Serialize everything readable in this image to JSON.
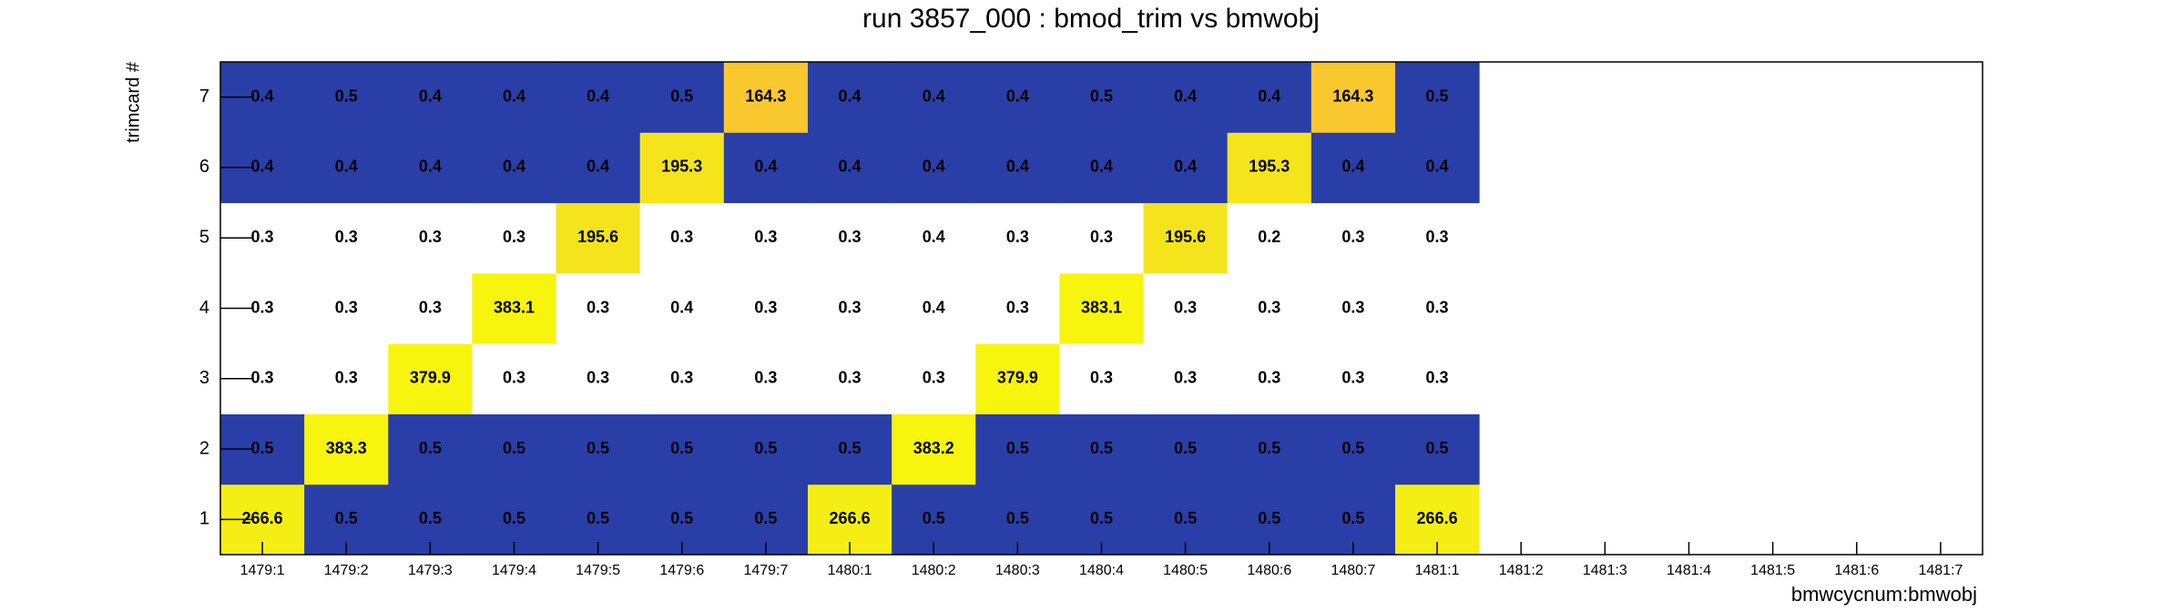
{
  "chart_data": {
    "type": "heatmap",
    "title": "run 3857_000 : bmod_trim vs bmwobj",
    "x_label": "bmwcycnum:bmwobj",
    "y_label": "trimcard #",
    "x_categories": [
      "1479:1",
      "1479:2",
      "1479:3",
      "1479:4",
      "1479:5",
      "1479:6",
      "1479:7",
      "1480:1",
      "1480:2",
      "1480:3",
      "1480:4",
      "1480:5",
      "1480:6",
      "1480:7",
      "1481:1",
      "1481:2",
      "1481:3",
      "1481:4",
      "1481:5",
      "1481:6",
      "1481:7"
    ],
    "y_categories": [
      1,
      2,
      3,
      4,
      5,
      6,
      7
    ],
    "values": [
      [
        266.6,
        0.5,
        0.5,
        0.5,
        0.5,
        0.5,
        0.5,
        266.6,
        0.5,
        0.5,
        0.5,
        0.5,
        0.5,
        0.5,
        266.6,
        null,
        null,
        null,
        null,
        null,
        null
      ],
      [
        0.5,
        383.3,
        0.5,
        0.5,
        0.5,
        0.5,
        0.5,
        0.5,
        383.2,
        0.5,
        0.5,
        0.5,
        0.5,
        0.5,
        0.5,
        null,
        null,
        null,
        null,
        null,
        null
      ],
      [
        0.3,
        0.3,
        379.9,
        0.3,
        0.3,
        0.3,
        0.3,
        0.3,
        0.3,
        379.9,
        0.3,
        0.3,
        0.3,
        0.3,
        0.3,
        null,
        null,
        null,
        null,
        null,
        null
      ],
      [
        0.3,
        0.3,
        0.3,
        383.1,
        0.3,
        0.4,
        0.3,
        0.3,
        0.4,
        0.3,
        383.1,
        0.3,
        0.3,
        0.3,
        0.3,
        null,
        null,
        null,
        null,
        null,
        null
      ],
      [
        0.3,
        0.3,
        0.3,
        0.3,
        195.6,
        0.3,
        0.3,
        0.3,
        0.4,
        0.3,
        0.3,
        195.6,
        0.2,
        0.3,
        0.3,
        null,
        null,
        null,
        null,
        null,
        null
      ],
      [
        0.4,
        0.4,
        0.4,
        0.4,
        0.4,
        195.3,
        0.4,
        0.4,
        0.4,
        0.4,
        0.4,
        0.4,
        195.3,
        0.4,
        0.4,
        null,
        null,
        null,
        null,
        null,
        null
      ],
      [
        0.4,
        0.5,
        0.4,
        0.4,
        0.4,
        0.5,
        164.3,
        0.4,
        0.4,
        0.4,
        0.5,
        0.4,
        0.4,
        164.3,
        0.5,
        null,
        null,
        null,
        null,
        null,
        null
      ]
    ],
    "colors": [
      [
        "#f5ee14",
        "#2a3ea8",
        "#2a3ea8",
        "#2a3ea8",
        "#2a3ea8",
        "#2a3ea8",
        "#2a3ea8",
        "#f5ee14",
        "#2a3ea8",
        "#2a3ea8",
        "#2a3ea8",
        "#2a3ea8",
        "#2a3ea8",
        "#2a3ea8",
        "#f5ee14",
        null,
        null,
        null,
        null,
        null,
        null
      ],
      [
        "#2a3ea8",
        "#f7f40e",
        "#2a3ea8",
        "#2a3ea8",
        "#2a3ea8",
        "#2a3ea8",
        "#2a3ea8",
        "#2a3ea8",
        "#f7f40e",
        "#2a3ea8",
        "#2a3ea8",
        "#2a3ea8",
        "#2a3ea8",
        "#2a3ea8",
        "#2a3ea8",
        null,
        null,
        null,
        null,
        null,
        null
      ],
      [
        "#ffffff",
        "#ffffff",
        "#f7f40e",
        "#ffffff",
        "#ffffff",
        "#ffffff",
        "#ffffff",
        "#ffffff",
        "#ffffff",
        "#f7f40e",
        "#ffffff",
        "#ffffff",
        "#ffffff",
        "#ffffff",
        "#ffffff",
        null,
        null,
        null,
        null,
        null,
        null
      ],
      [
        "#ffffff",
        "#ffffff",
        "#ffffff",
        "#f7f40e",
        "#ffffff",
        "#ffffff",
        "#ffffff",
        "#ffffff",
        "#ffffff",
        "#ffffff",
        "#f7f40e",
        "#ffffff",
        "#ffffff",
        "#ffffff",
        "#ffffff",
        null,
        null,
        null,
        null,
        null,
        null
      ],
      [
        "#ffffff",
        "#ffffff",
        "#ffffff",
        "#ffffff",
        "#f5e41c",
        "#ffffff",
        "#ffffff",
        "#ffffff",
        "#ffffff",
        "#ffffff",
        "#ffffff",
        "#f5e41c",
        "#ffffff",
        "#ffffff",
        "#ffffff",
        null,
        null,
        null,
        null,
        null,
        null
      ],
      [
        "#2a3ea8",
        "#2a3ea8",
        "#2a3ea8",
        "#2a3ea8",
        "#2a3ea8",
        "#f5e41c",
        "#2a3ea8",
        "#2a3ea8",
        "#2a3ea8",
        "#2a3ea8",
        "#2a3ea8",
        "#2a3ea8",
        "#f5e41c",
        "#2a3ea8",
        "#2a3ea8",
        null,
        null,
        null,
        null,
        null,
        null
      ],
      [
        "#2a3ea8",
        "#2a3ea8",
        "#2a3ea8",
        "#2a3ea8",
        "#2a3ea8",
        "#2a3ea8",
        "#f9c82e",
        "#2a3ea8",
        "#2a3ea8",
        "#2a3ea8",
        "#2a3ea8",
        "#2a3ea8",
        "#2a3ea8",
        "#f9c82e",
        "#2a3ea8",
        null,
        null,
        null,
        null,
        null,
        null
      ]
    ]
  }
}
